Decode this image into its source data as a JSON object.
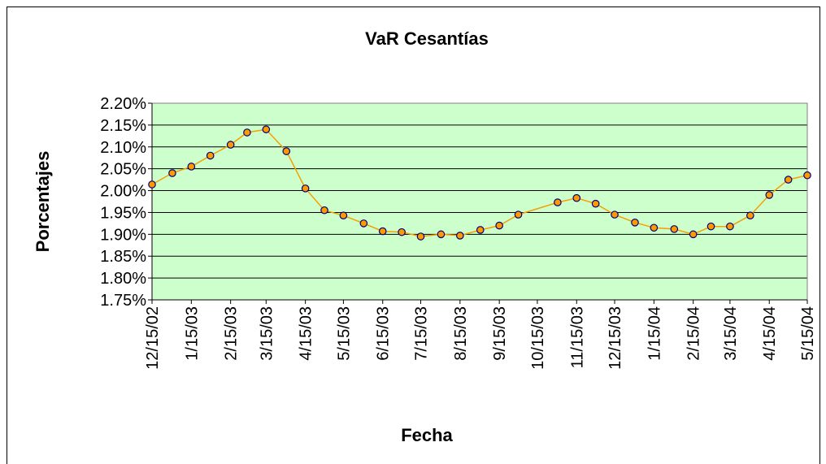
{
  "chart_data": {
    "type": "line",
    "title": "VaR Cesantías",
    "xlabel": "Fecha",
    "ylabel": "Porcentajes",
    "x": [
      "12/15/02",
      "12/31/02",
      "1/15/03",
      "1/30/03",
      "2/15/03",
      "2/28/03",
      "3/15/03",
      "3/31/03",
      "4/15/03",
      "4/30/03",
      "5/15/03",
      "5/31/03",
      "6/15/03",
      "6/30/03",
      "7/15/03",
      "7/31/03",
      "8/15/03",
      "8/31/03",
      "9/15/03",
      "9/30/03",
      "10/31/03",
      "11/15/03",
      "11/30/03",
      "12/15/03",
      "12/31/03",
      "1/15/04",
      "1/31/04",
      "2/15/04",
      "2/29/04",
      "3/15/04",
      "3/31/04",
      "4/15/04",
      "4/30/04",
      "5/15/04"
    ],
    "series": [
      {
        "name": "VaR",
        "color": "#f5a000",
        "marker_color": "#ff9900",
        "marker_edge": "#000080",
        "values": [
          2.014,
          2.04,
          2.055,
          2.08,
          2.105,
          2.133,
          2.14,
          2.09,
          2.005,
          1.955,
          1.943,
          1.925,
          1.907,
          1.905,
          1.895,
          1.9,
          1.897,
          1.91,
          1.92,
          1.945,
          1.973,
          1.983,
          1.97,
          1.945,
          1.927,
          1.915,
          1.912,
          1.9,
          1.918,
          1.918,
          1.943,
          1.99,
          2.025,
          2.035
        ]
      }
    ],
    "xlim": [
      "12/15/02",
      "5/15/04"
    ],
    "xticks": [
      "12/15/02",
      "1/15/03",
      "2/15/03",
      "3/15/03",
      "4/15/03",
      "5/15/03",
      "6/15/03",
      "7/15/03",
      "8/15/03",
      "9/15/03",
      "10/15/03",
      "11/15/03",
      "12/15/03",
      "1/15/04",
      "2/15/04",
      "3/15/04",
      "4/15/04",
      "5/15/04"
    ],
    "ylim": [
      1.75,
      2.2
    ],
    "yticks": [
      {
        "value": 1.75,
        "label": "1.75%"
      },
      {
        "value": 1.8,
        "label": "1.80%"
      },
      {
        "value": 1.85,
        "label": "1.85%"
      },
      {
        "value": 1.9,
        "label": "1.90%"
      },
      {
        "value": 1.95,
        "label": "1.95%"
      },
      {
        "value": 2.0,
        "label": "2.00%"
      },
      {
        "value": 2.05,
        "label": "2.05%"
      },
      {
        "value": 2.1,
        "label": "2.10%"
      },
      {
        "value": 2.15,
        "label": "2.15%"
      },
      {
        "value": 2.2,
        "label": "2.20%"
      }
    ],
    "grid": true,
    "plot_background": "#ccffcc"
  }
}
